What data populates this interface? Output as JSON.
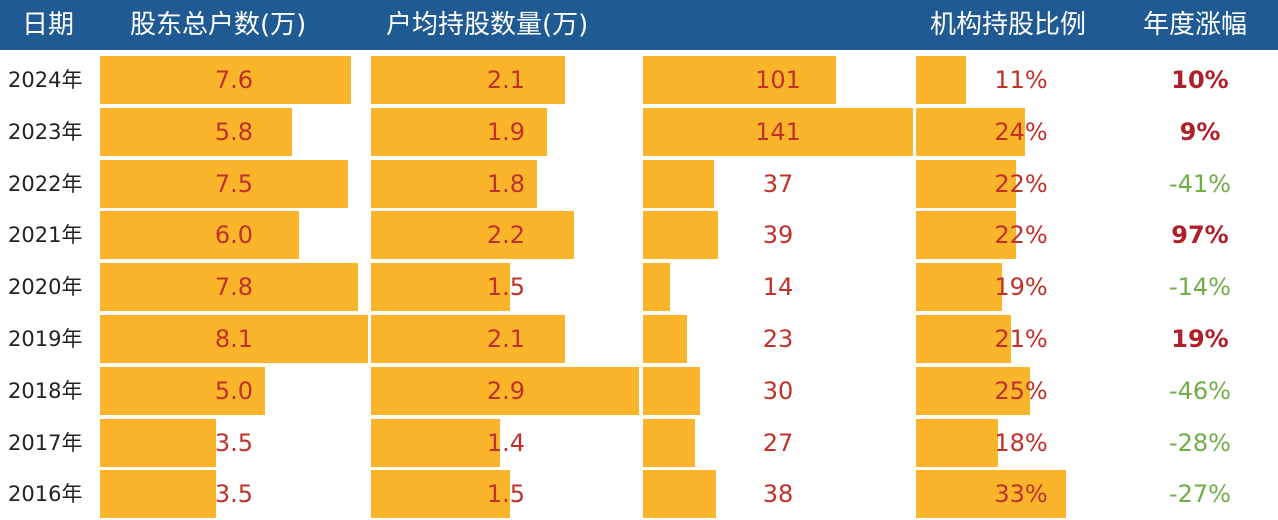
{
  "chart_data": {
    "type": "table",
    "colors": {
      "header_bg": "#1f5a93",
      "bar": "#fbb52b",
      "value_text": "#c0312b",
      "positive": "#b0202b",
      "negative": "#70ad47"
    },
    "headers": {
      "date": "日期",
      "holders": "股东总户数(万)",
      "per_holder": "户均持股数量(万)",
      "blurred": "",
      "institution": "机构持股比例",
      "change": "年度涨幅"
    },
    "rows": [
      {
        "date": "2024年",
        "holders": 7.6,
        "holders_label": "7.6",
        "per_holder": 2.1,
        "per_holder_label": "2.1",
        "third": 101,
        "third_label": "101",
        "institution_pct": 11,
        "institution_label": "11%",
        "change_pct": 10,
        "change_label": "10%"
      },
      {
        "date": "2023年",
        "holders": 5.8,
        "holders_label": "5.8",
        "per_holder": 1.9,
        "per_holder_label": "1.9",
        "third": 141,
        "third_label": "141",
        "institution_pct": 24,
        "institution_label": "24%",
        "change_pct": 9,
        "change_label": "9%"
      },
      {
        "date": "2022年",
        "holders": 7.5,
        "holders_label": "7.5",
        "per_holder": 1.8,
        "per_holder_label": "1.8",
        "third": 37,
        "third_label": "37",
        "institution_pct": 22,
        "institution_label": "22%",
        "change_pct": -41,
        "change_label": "-41%"
      },
      {
        "date": "2021年",
        "holders": 6.0,
        "holders_label": "6.0",
        "per_holder": 2.2,
        "per_holder_label": "2.2",
        "third": 39,
        "third_label": "39",
        "institution_pct": 22,
        "institution_label": "22%",
        "change_pct": 97,
        "change_label": "97%"
      },
      {
        "date": "2020年",
        "holders": 7.8,
        "holders_label": "7.8",
        "per_holder": 1.5,
        "per_holder_label": "1.5",
        "third": 14,
        "third_label": "14",
        "institution_pct": 19,
        "institution_label": "19%",
        "change_pct": -14,
        "change_label": "-14%"
      },
      {
        "date": "2019年",
        "holders": 8.1,
        "holders_label": "8.1",
        "per_holder": 2.1,
        "per_holder_label": "2.1",
        "third": 23,
        "third_label": "23",
        "institution_pct": 21,
        "institution_label": "21%",
        "change_pct": 19,
        "change_label": "19%"
      },
      {
        "date": "2018年",
        "holders": 5.0,
        "holders_label": "5.0",
        "per_holder": 2.9,
        "per_holder_label": "2.9",
        "third": 30,
        "third_label": "30",
        "institution_pct": 25,
        "institution_label": "25%",
        "change_pct": -46,
        "change_label": "-46%"
      },
      {
        "date": "2017年",
        "holders": 3.5,
        "holders_label": "3.5",
        "per_holder": 1.4,
        "per_holder_label": "1.4",
        "third": 27,
        "third_label": "27",
        "institution_pct": 18,
        "institution_label": "18%",
        "change_pct": -28,
        "change_label": "-28%"
      },
      {
        "date": "2016年",
        "holders": 3.5,
        "holders_label": "3.5",
        "per_holder": 1.5,
        "per_holder_label": "1.5",
        "third": 38,
        "third_label": "38",
        "institution_pct": 33,
        "institution_label": "33%",
        "change_pct": -27,
        "change_label": "-27%"
      }
    ]
  }
}
